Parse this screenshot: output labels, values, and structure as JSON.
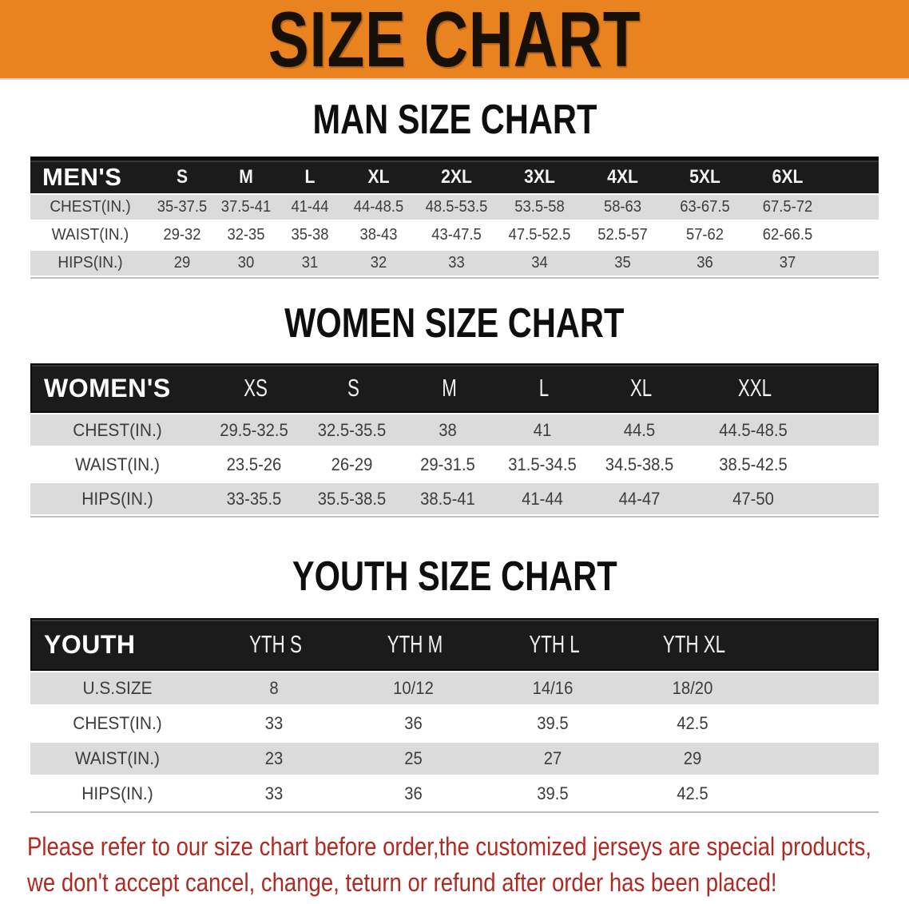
{
  "banner": {
    "title": "SIZE CHART",
    "bg_color": "#E8831F",
    "text_color": "#171007"
  },
  "sections": [
    {
      "title": "MAN SIZE CHART",
      "label": "MEN'S",
      "columns": [
        "S",
        "M",
        "L",
        "XL",
        "2XL",
        "3XL",
        "4XL",
        "5XL",
        "6XL"
      ],
      "rows": [
        {
          "label": "CHEST(IN.)",
          "values": [
            "35-37.5",
            "37.5-41",
            "41-44",
            "44-48.5",
            "48.5-53.5",
            "53.5-58",
            "58-63",
            "63-67.5",
            "67.5-72"
          ]
        },
        {
          "label": "WAIST(IN.)",
          "values": [
            "29-32",
            "32-35",
            "35-38",
            "38-43",
            "43-47.5",
            "47.5-52.5",
            "52.5-57",
            "57-62",
            "62-66.5"
          ]
        },
        {
          "label": "HIPS(IN.)",
          "values": [
            "29",
            "30",
            "31",
            "32",
            "33",
            "34",
            "35",
            "36",
            "37"
          ]
        }
      ]
    },
    {
      "title": "WOMEN SIZE CHART",
      "label": "WOMEN'S",
      "columns": [
        "XS",
        "S",
        "M",
        "L",
        "XL",
        "XXL"
      ],
      "rows": [
        {
          "label": "CHEST(IN.)",
          "values": [
            "29.5-32.5",
            "32.5-35.5",
            "38",
            "41",
            "44.5",
            "44.5-48.5"
          ]
        },
        {
          "label": "WAIST(IN.)",
          "values": [
            "23.5-26",
            "26-29",
            "29-31.5",
            "31.5-34.5",
            "34.5-38.5",
            "38.5-42.5"
          ]
        },
        {
          "label": "HIPS(IN.)",
          "values": [
            "33-35.5",
            "35.5-38.5",
            "38.5-41",
            "41-44",
            "44-47",
            "47-50"
          ]
        }
      ]
    },
    {
      "title": "YOUTH SIZE CHART",
      "label": "YOUTH",
      "columns": [
        "YTH S",
        "YTH M",
        "YTH L",
        "YTH XL"
      ],
      "rows": [
        {
          "label": "U.S.SIZE",
          "values": [
            "8",
            "10/12",
            "14/16",
            "18/20"
          ]
        },
        {
          "label": "CHEST(IN.)",
          "values": [
            "33",
            "36",
            "39.5",
            "42.5"
          ]
        },
        {
          "label": "WAIST(IN.)",
          "values": [
            "23",
            "25",
            "27",
            "29"
          ]
        },
        {
          "label": "HIPS(IN.)",
          "values": [
            "33",
            "36",
            "39.5",
            "42.5"
          ]
        }
      ]
    }
  ],
  "disclaimer": {
    "line1": "Please refer to our size chart before order,the customized jerseys are special products,",
    "line2": "we don't accept cancel, change, teturn or refund after order has been placed!",
    "color": "#B02A22"
  }
}
